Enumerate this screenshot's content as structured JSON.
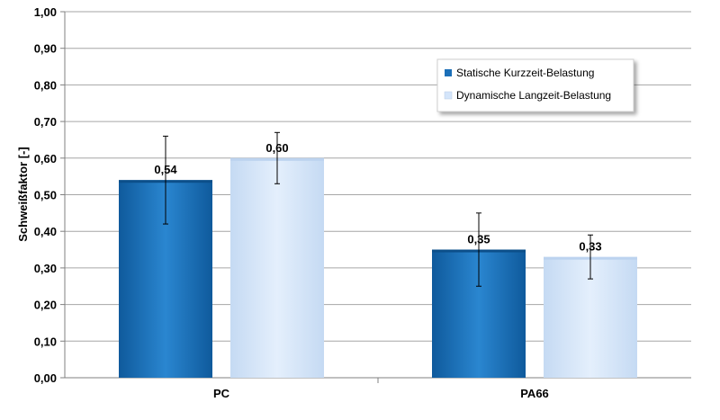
{
  "chart_data": {
    "type": "bar",
    "title": "",
    "xlabel": "",
    "ylabel": "Schweißfaktor [-]",
    "ylim": [
      0,
      1
    ],
    "yticks": [
      "0,00",
      "0,10",
      "0,20",
      "0,30",
      "0,40",
      "0,50",
      "0,60",
      "0,70",
      "0,80",
      "0,90",
      "1,00"
    ],
    "grid": true,
    "legend_position": "top-right",
    "categories": [
      "PC",
      "PA66"
    ],
    "series": [
      {
        "name": "Statische Kurzzeit-Belastung",
        "color": "#1b6fb8",
        "values": [
          0.54,
          0.35
        ],
        "labels": [
          "0,54",
          "0,35"
        ],
        "error": [
          [
            0.42,
            0.66
          ],
          [
            0.25,
            0.45
          ]
        ]
      },
      {
        "name": "Dynamische Langzeit-Belastung",
        "color": "#d4e5fa",
        "values": [
          0.6,
          0.33
        ],
        "labels": [
          "0,60",
          "0,33"
        ],
        "error": [
          [
            0.53,
            0.67
          ],
          [
            0.27,
            0.39
          ]
        ]
      }
    ]
  }
}
